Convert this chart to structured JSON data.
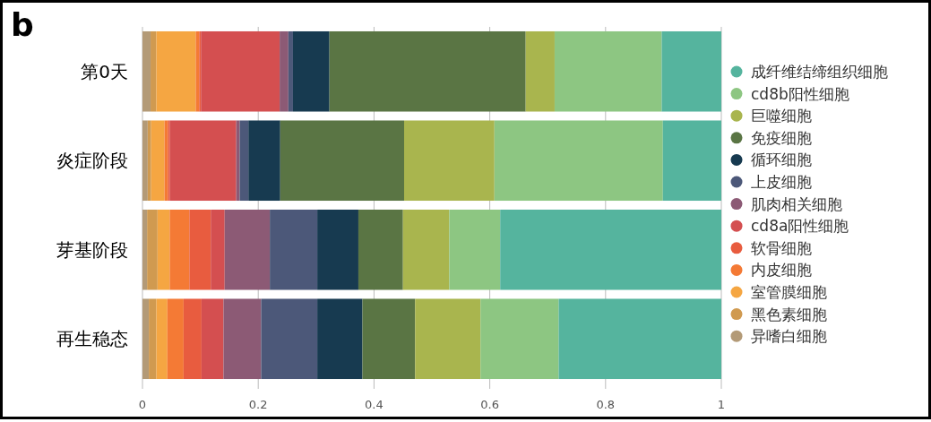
{
  "chart_data": {
    "type": "bar",
    "orientation": "horizontal",
    "stacked": true,
    "categories": [
      "第0天",
      "炎症阶段",
      "芽基阶段",
      "再生稳态"
    ],
    "series": [
      {
        "name": "异嗜白细胞",
        "color": "#b39a77",
        "values": [
          0.014,
          0.009,
          0.008,
          0.011
        ]
      },
      {
        "name": "黑色素细胞",
        "color": "#d09a50",
        "values": [
          0.01,
          0.006,
          0.018,
          0.013
        ]
      },
      {
        "name": "室管膜细胞",
        "color": "#f5a642",
        "values": [
          0.068,
          0.023,
          0.021,
          0.019
        ]
      },
      {
        "name": "内皮细胞",
        "color": "#f47a35",
        "values": [
          0.006,
          0.006,
          0.034,
          0.028
        ]
      },
      {
        "name": "软骨细胞",
        "color": "#e85c3f",
        "values": [
          0.003,
          0.003,
          0.037,
          0.031
        ]
      },
      {
        "name": "cd8a阳性细胞",
        "color": "#d44f50",
        "values": [
          0.136,
          0.115,
          0.024,
          0.038
        ]
      },
      {
        "name": "肌肉相关细胞",
        "color": "#8c5a75",
        "values": [
          0.015,
          0.006,
          0.078,
          0.065
        ]
      },
      {
        "name": "上皮细胞",
        "color": "#4c5879",
        "values": [
          0.008,
          0.015,
          0.082,
          0.097
        ]
      },
      {
        "name": "循环细胞",
        "color": "#173a50",
        "values": [
          0.063,
          0.055,
          0.071,
          0.078
        ]
      },
      {
        "name": "免疫细胞",
        "color": "#5a7544",
        "values": [
          0.339,
          0.214,
          0.077,
          0.091
        ]
      },
      {
        "name": "巨噬细胞",
        "color": "#a9b54e",
        "values": [
          0.05,
          0.156,
          0.08,
          0.113
        ]
      },
      {
        "name": "cd8b阳性细胞",
        "color": "#8dc682",
        "values": [
          0.185,
          0.291,
          0.088,
          0.135
        ]
      },
      {
        "name": "成纤维结缔组织细胞",
        "color": "#55b49e",
        "values": [
          0.103,
          0.101,
          0.382,
          0.281
        ]
      }
    ],
    "xlim": [
      0,
      1
    ],
    "xticks": [
      0,
      0.2,
      0.4,
      0.6,
      0.8,
      1
    ],
    "grid": "x",
    "legend": "right",
    "annotations": [
      "b"
    ]
  }
}
